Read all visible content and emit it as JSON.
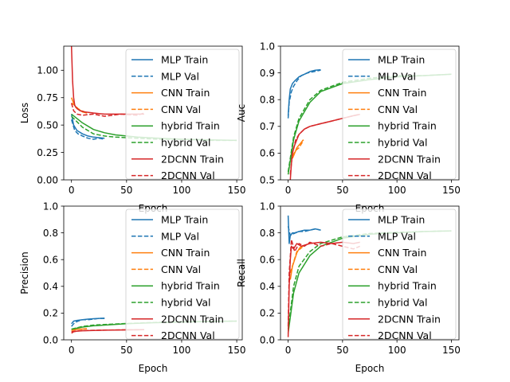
{
  "colors": {
    "MLP": "#1f77b4",
    "CNN": "#ff7f0e",
    "hybrid": "#2ca02c",
    "2DCNN": "#d62728"
  },
  "legend": [
    "MLP Train",
    "MLP Val",
    "CNN Train",
    "CNN Val",
    "hybrid Train",
    "hybrid Val",
    "2DCNN Train",
    "2DCNN Val"
  ],
  "chart_data": [
    {
      "type": "line",
      "ylabel": "Loss",
      "xlabel": "Epoch",
      "xlim": [
        -7,
        155
      ],
      "ylim": [
        0,
        1.22
      ],
      "xticks": [
        "0",
        "50",
        "100",
        "150"
      ],
      "yticks": [
        "0.00",
        "0.25",
        "0.50",
        "0.75",
        "1.00"
      ],
      "legend_position": "right",
      "series": [
        {
          "name": "MLP Train",
          "x": [
            0,
            2,
            5,
            10,
            15,
            20,
            25,
            30
          ],
          "y": [
            0.6,
            0.5,
            0.45,
            0.42,
            0.4,
            0.39,
            0.385,
            0.38
          ]
        },
        {
          "name": "MLP Val",
          "x": [
            0,
            3,
            6,
            10,
            15,
            20,
            25,
            30
          ],
          "y": [
            0.55,
            0.45,
            0.42,
            0.4,
            0.38,
            0.37,
            0.38,
            0.37
          ]
        },
        {
          "name": "CNN Train",
          "x": [
            0,
            2,
            4,
            7,
            10,
            14
          ],
          "y": [
            0.75,
            0.7,
            0.66,
            0.64,
            0.62,
            0.61
          ]
        },
        {
          "name": "CNN Val",
          "x": [
            0,
            3,
            6,
            9,
            12,
            14
          ],
          "y": [
            0.7,
            0.68,
            0.65,
            0.63,
            0.62,
            0.6
          ]
        },
        {
          "name": "hybrid Train",
          "x": [
            0,
            10,
            20,
            30,
            40,
            60,
            80,
            100,
            125,
            150
          ],
          "y": [
            0.6,
            0.52,
            0.46,
            0.43,
            0.41,
            0.39,
            0.38,
            0.37,
            0.365,
            0.36
          ]
        },
        {
          "name": "hybrid Val",
          "x": [
            0,
            10,
            20,
            30,
            40,
            60,
            80,
            100,
            125,
            150
          ],
          "y": [
            0.58,
            0.48,
            0.42,
            0.4,
            0.39,
            0.38,
            0.37,
            0.37,
            0.36,
            0.36
          ]
        },
        {
          "name": "2DCNN Train",
          "x": [
            0,
            1,
            2,
            3,
            5,
            8,
            12,
            20,
            30,
            45,
            60,
            66
          ],
          "y": [
            1.22,
            0.9,
            0.75,
            0.68,
            0.65,
            0.63,
            0.62,
            0.61,
            0.6,
            0.6,
            0.6,
            0.6
          ]
        },
        {
          "name": "2DCNN Val",
          "x": [
            0,
            2,
            5,
            10,
            20,
            30,
            45,
            60,
            66
          ],
          "y": [
            0.7,
            0.63,
            0.6,
            0.59,
            0.6,
            0.58,
            0.6,
            0.59,
            0.61
          ]
        }
      ]
    },
    {
      "type": "line",
      "ylabel": "Auc",
      "xlabel": "Epoch",
      "xlim": [
        -7,
        157
      ],
      "ylim": [
        0.5,
        1.0
      ],
      "xticks": [
        "0",
        "50",
        "100",
        "150"
      ],
      "yticks": [
        "0.5",
        "0.6",
        "0.7",
        "0.8",
        "0.9",
        "1.0"
      ],
      "legend_position": "right",
      "series": [
        {
          "name": "MLP Train",
          "x": [
            0,
            1,
            2,
            4,
            6,
            10,
            15,
            20,
            25,
            30
          ],
          "y": [
            0.74,
            0.8,
            0.84,
            0.86,
            0.87,
            0.885,
            0.895,
            0.905,
            0.91,
            0.912
          ]
        },
        {
          "name": "MLP Val",
          "x": [
            0,
            1,
            3,
            5,
            8,
            12,
            18,
            24,
            30
          ],
          "y": [
            0.73,
            0.79,
            0.83,
            0.85,
            0.87,
            0.89,
            0.9,
            0.905,
            0.91
          ]
        },
        {
          "name": "CNN Train",
          "x": [
            4,
            6,
            8,
            10,
            12,
            14
          ],
          "y": [
            0.58,
            0.6,
            0.62,
            0.63,
            0.64,
            0.65
          ]
        },
        {
          "name": "CNN Val",
          "x": [
            4,
            7,
            10,
            13,
            14
          ],
          "y": [
            0.59,
            0.61,
            0.62,
            0.64,
            0.65
          ]
        },
        {
          "name": "hybrid Train",
          "x": [
            0,
            5,
            10,
            20,
            30,
            50,
            75,
            100,
            125,
            150
          ],
          "y": [
            0.52,
            0.65,
            0.72,
            0.79,
            0.83,
            0.86,
            0.875,
            0.885,
            0.89,
            0.895
          ]
        },
        {
          "name": "hybrid Val",
          "x": [
            0,
            5,
            10,
            20,
            30,
            50,
            75,
            100,
            125,
            150
          ],
          "y": [
            0.53,
            0.66,
            0.73,
            0.8,
            0.835,
            0.865,
            0.88,
            0.89,
            0.89,
            0.895
          ]
        },
        {
          "name": "2DCNN Train",
          "x": [
            2,
            3,
            4,
            6,
            8,
            10,
            15,
            20,
            30,
            40,
            50,
            60,
            66
          ],
          "y": [
            0.5,
            0.56,
            0.6,
            0.63,
            0.65,
            0.67,
            0.69,
            0.7,
            0.71,
            0.72,
            0.73,
            0.74,
            0.745
          ]
        },
        {
          "name": "2DCNN Val",
          "x": [
            2,
            4,
            7,
            10,
            15,
            20,
            30,
            40,
            50,
            60,
            66
          ],
          "y": [
            0.52,
            0.6,
            0.65,
            0.67,
            0.69,
            0.7,
            0.71,
            0.72,
            0.73,
            0.74,
            0.745
          ]
        }
      ]
    },
    {
      "type": "line",
      "ylabel": "Precision",
      "xlabel": "Epoch",
      "xlim": [
        -7,
        155
      ],
      "ylim": [
        0,
        1.0
      ],
      "xticks": [
        "0",
        "50",
        "100",
        "150"
      ],
      "yticks": [
        "0.0",
        "0.2",
        "0.4",
        "0.6",
        "0.8",
        "1.0"
      ],
      "legend_position": "right",
      "series": [
        {
          "name": "MLP Train",
          "x": [
            0,
            2,
            5,
            10,
            15,
            20,
            25,
            30
          ],
          "y": [
            0.12,
            0.14,
            0.145,
            0.15,
            0.155,
            0.158,
            0.16,
            0.162
          ]
        },
        {
          "name": "MLP Val",
          "x": [
            0,
            3,
            6,
            10,
            15,
            20,
            25,
            30
          ],
          "y": [
            0.1,
            0.13,
            0.14,
            0.15,
            0.15,
            0.155,
            0.16,
            0.16
          ]
        },
        {
          "name": "CNN Train",
          "x": [
            0,
            3,
            6,
            9,
            12,
            14
          ],
          "y": [
            0.07,
            0.075,
            0.08,
            0.08,
            0.082,
            0.083
          ]
        },
        {
          "name": "CNN Val",
          "x": [
            0,
            4,
            8,
            12,
            14
          ],
          "y": [
            0.07,
            0.078,
            0.08,
            0.082,
            0.083
          ]
        },
        {
          "name": "hybrid Train",
          "x": [
            0,
            10,
            20,
            30,
            50,
            75,
            100,
            125,
            150
          ],
          "y": [
            0.08,
            0.095,
            0.105,
            0.11,
            0.12,
            0.128,
            0.133,
            0.137,
            0.14
          ]
        },
        {
          "name": "hybrid Val",
          "x": [
            0,
            10,
            20,
            30,
            50,
            75,
            100,
            125,
            150
          ],
          "y": [
            0.08,
            0.1,
            0.11,
            0.115,
            0.122,
            0.13,
            0.135,
            0.138,
            0.14
          ]
        },
        {
          "name": "2DCNN Train",
          "x": [
            0,
            2,
            5,
            10,
            20,
            30,
            45,
            60,
            66
          ],
          "y": [
            0.05,
            0.06,
            0.065,
            0.068,
            0.07,
            0.072,
            0.074,
            0.075,
            0.076
          ]
        },
        {
          "name": "2DCNN Val",
          "x": [
            0,
            3,
            8,
            15,
            25,
            35,
            50,
            60,
            66
          ],
          "y": [
            0.06,
            0.065,
            0.068,
            0.07,
            0.072,
            0.073,
            0.075,
            0.075,
            0.076
          ]
        }
      ]
    },
    {
      "type": "line",
      "ylabel": "Recall",
      "xlabel": "Epoch",
      "xlim": [
        -7,
        157
      ],
      "ylim": [
        0,
        1.0
      ],
      "xticks": [
        "0",
        "50",
        "100",
        "150"
      ],
      "yticks": [
        "0.0",
        "0.2",
        "0.4",
        "0.6",
        "0.8",
        "1.0"
      ],
      "legend_position": "right",
      "series": [
        {
          "name": "MLP Train",
          "x": [
            0,
            1,
            2,
            4,
            6,
            10,
            15,
            20,
            25,
            30
          ],
          "y": [
            0.93,
            0.72,
            0.78,
            0.8,
            0.8,
            0.81,
            0.82,
            0.82,
            0.83,
            0.82
          ]
        },
        {
          "name": "MLP Val",
          "x": [
            0,
            2,
            4,
            7,
            10,
            15,
            20,
            25,
            30
          ],
          "y": [
            0.85,
            0.78,
            0.79,
            0.8,
            0.81,
            0.81,
            0.82,
            0.83,
            0.82
          ]
        },
        {
          "name": "CNN Train",
          "x": [
            2,
            4,
            6,
            8,
            10,
            12,
            14
          ],
          "y": [
            0.45,
            0.55,
            0.6,
            0.65,
            0.68,
            0.7,
            0.7
          ]
        },
        {
          "name": "CNN Val",
          "x": [
            2,
            5,
            8,
            11,
            14
          ],
          "y": [
            0.5,
            0.58,
            0.66,
            0.68,
            0.7
          ]
        },
        {
          "name": "hybrid Train",
          "x": [
            0,
            5,
            10,
            20,
            30,
            50,
            75,
            100,
            125,
            150
          ],
          "y": [
            0.05,
            0.35,
            0.5,
            0.63,
            0.7,
            0.76,
            0.79,
            0.8,
            0.81,
            0.815
          ]
        },
        {
          "name": "hybrid Val",
          "x": [
            0,
            5,
            10,
            20,
            30,
            50,
            75,
            100,
            125,
            150
          ],
          "y": [
            0.08,
            0.4,
            0.55,
            0.66,
            0.72,
            0.77,
            0.795,
            0.805,
            0.81,
            0.815
          ]
        },
        {
          "name": "2DCNN Train",
          "x": [
            0,
            1,
            2,
            3,
            5,
            8,
            12,
            20,
            30,
            40,
            50,
            60,
            66
          ],
          "y": [
            0.02,
            0.4,
            0.6,
            0.7,
            0.68,
            0.72,
            0.7,
            0.72,
            0.73,
            0.72,
            0.73,
            0.72,
            0.73
          ]
        },
        {
          "name": "2DCNN Val",
          "x": [
            0,
            1,
            3,
            6,
            10,
            15,
            20,
            30,
            40,
            50,
            60,
            66
          ],
          "y": [
            0.1,
            0.5,
            0.75,
            0.66,
            0.72,
            0.7,
            0.73,
            0.7,
            0.72,
            0.7,
            0.68,
            0.7
          ]
        }
      ]
    }
  ]
}
